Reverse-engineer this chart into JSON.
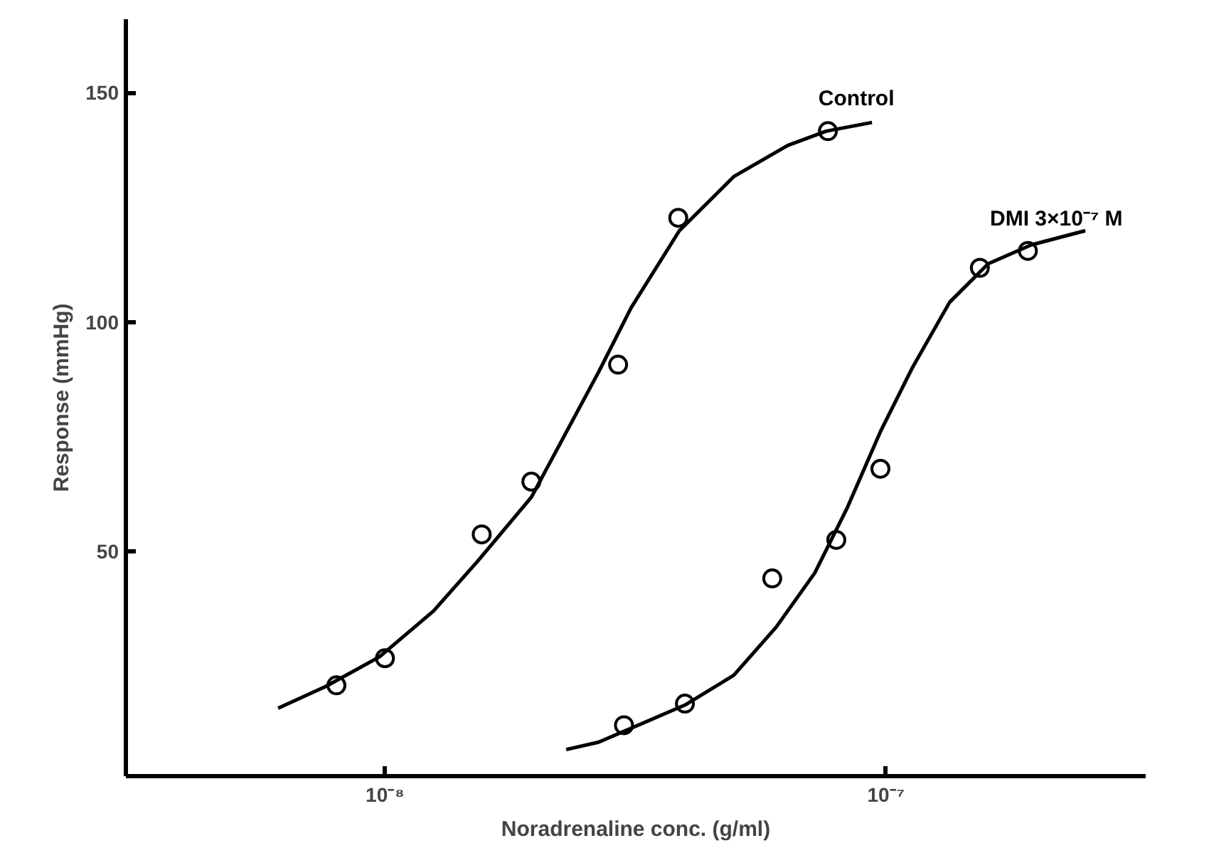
{
  "chart_data": {
    "type": "scatter",
    "xlabel": "Noradrenaline conc. (g/ml)",
    "ylabel": "Response (mmHg)",
    "log": "x",
    "xlim": [
      3.04e-09,
      3.3e-07
    ],
    "ylim": [
      1,
      166
    ],
    "xticks": [
      {
        "value": 1e-08,
        "label": "10⁻⁸"
      },
      {
        "value": 1e-07,
        "label": "10⁻⁷"
      }
    ],
    "yticks": [
      50,
      100,
      150
    ],
    "grid": false,
    "legend": false,
    "series": [
      {
        "name": "Control",
        "marker": "circle",
        "color": "#000000",
        "x": [
          8e-09,
          1e-08,
          1.56e-08,
          1.96e-08,
          2.92e-08,
          3.85e-08,
          7.66e-08
        ],
        "values": [
          20.8,
          26.7,
          53.7,
          65.2,
          90.7,
          122.7,
          141.6
        ]
      },
      {
        "type": "line",
        "line_style": "solid",
        "color": "#000000",
        "x": [
          6.12e-09,
          7.6e-09,
          9.75e-09,
          1.25e-08,
          1.53e-08,
          1.96e-08,
          2.67e-08,
          3.1e-08,
          3.87e-08,
          4.97e-08,
          6.37e-08,
          7.6e-08,
          9.38e-08
        ],
        "values": [
          15.8,
          20.5,
          27.0,
          37.0,
          47.8,
          61.8,
          89.1,
          103.1,
          119.9,
          131.7,
          138.5,
          141.6,
          143.5
        ]
      },
      {
        "name": "DMI 3×10⁻⁷ M",
        "marker": "circle",
        "color": "#000000",
        "x": [
          3e-08,
          3.97e-08,
          5.93e-08,
          7.96e-08,
          9.75e-08,
          1.54e-07,
          1.92e-07
        ],
        "values": [
          12.1,
          16.8,
          44.1,
          52.5,
          68.0,
          111.8,
          115.5
        ]
      },
      {
        "type": "line",
        "line_style": "solid",
        "color": "#000000",
        "x": [
          2.3e-08,
          2.67e-08,
          3.97e-08,
          4.97e-08,
          6.04e-08,
          7.21e-08,
          8.38e-08,
          9.75e-08,
          1.13e-07,
          1.34e-07,
          1.6e-07,
          1.95e-07,
          2.5e-07
        ],
        "values": [
          6.8,
          8.4,
          16.5,
          23.0,
          33.5,
          45.3,
          59.6,
          76.1,
          90.1,
          104.3,
          112.7,
          116.8,
          119.9
        ]
      }
    ]
  }
}
